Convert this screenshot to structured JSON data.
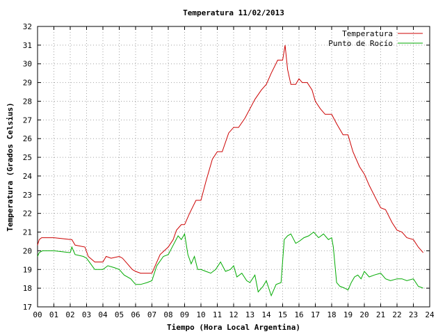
{
  "chart_data": {
    "type": "line",
    "title": "Temperatura 11/02/2013",
    "xlabel": "Tiempo (Hora Local Argentina)",
    "ylabel": "Temperatura (Grados Celsius)",
    "xlim": [
      0,
      24
    ],
    "ylim": [
      17,
      32
    ],
    "x_ticks": [
      "00",
      "01",
      "02",
      "03",
      "04",
      "05",
      "06",
      "07",
      "08",
      "09",
      "10",
      "11",
      "12",
      "13",
      "14",
      "15",
      "16",
      "17",
      "18",
      "19",
      "20",
      "21",
      "22",
      "23",
      "24"
    ],
    "y_ticks": [
      "17",
      "18",
      "19",
      "20",
      "21",
      "22",
      "23",
      "24",
      "25",
      "26",
      "27",
      "28",
      "29",
      "30",
      "31",
      "32"
    ],
    "grid": true,
    "legend_position": "top-right",
    "series": [
      {
        "name": "Temperatura",
        "color": "#cc0000",
        "x": [
          0.0,
          0.1,
          0.25,
          0.5,
          1.0,
          1.5,
          2.0,
          2.1,
          2.3,
          2.9,
          3.1,
          3.5,
          4.0,
          4.2,
          4.5,
          5.0,
          5.2,
          5.5,
          5.8,
          6.0,
          6.3,
          6.7,
          7.0,
          7.2,
          7.5,
          8.0,
          8.3,
          8.5,
          8.8,
          9.0,
          9.3,
          9.7,
          10.0,
          10.3,
          10.7,
          11.0,
          11.3,
          11.7,
          12.0,
          12.3,
          12.7,
          13.0,
          13.3,
          13.7,
          14.0,
          14.3,
          14.7,
          15.0,
          15.15,
          15.3,
          15.5,
          15.8,
          16.0,
          16.2,
          16.5,
          16.8,
          17.0,
          17.3,
          17.6,
          18.0,
          18.3,
          18.7,
          19.0,
          19.3,
          19.7,
          20.0,
          20.3,
          20.7,
          21.0,
          21.3,
          21.7,
          22.0,
          22.3,
          22.6,
          23.0,
          23.3,
          23.6
        ],
        "values": [
          20.3,
          20.6,
          20.7,
          20.7,
          20.7,
          20.65,
          20.6,
          20.6,
          20.3,
          20.2,
          19.7,
          19.4,
          19.4,
          19.7,
          19.6,
          19.7,
          19.6,
          19.3,
          19.0,
          18.9,
          18.8,
          18.8,
          18.8,
          19.2,
          19.8,
          20.2,
          20.6,
          21.1,
          21.4,
          21.4,
          22.0,
          22.7,
          22.7,
          23.7,
          24.9,
          25.3,
          25.3,
          26.3,
          26.6,
          26.6,
          27.1,
          27.6,
          28.1,
          28.6,
          28.9,
          29.5,
          30.2,
          30.2,
          31.0,
          29.7,
          28.9,
          28.9,
          29.2,
          29.0,
          29.0,
          28.6,
          28.0,
          27.6,
          27.3,
          27.3,
          26.8,
          26.2,
          26.2,
          25.3,
          24.5,
          24.1,
          23.5,
          22.8,
          22.3,
          22.2,
          21.5,
          21.1,
          21.0,
          20.7,
          20.6,
          20.2,
          19.9
        ]
      },
      {
        "name": "Punto de Rocío",
        "color": "#00aa00",
        "x": [
          0.0,
          0.1,
          0.3,
          0.7,
          1.0,
          1.5,
          2.0,
          2.1,
          2.3,
          2.8,
          3.0,
          3.5,
          4.0,
          4.3,
          4.7,
          5.0,
          5.3,
          5.7,
          6.0,
          6.3,
          6.7,
          7.0,
          7.3,
          7.7,
          8.0,
          8.3,
          8.6,
          8.8,
          9.0,
          9.2,
          9.4,
          9.6,
          9.8,
          10.0,
          10.3,
          10.6,
          10.9,
          11.2,
          11.5,
          11.8,
          12.0,
          12.2,
          12.5,
          12.8,
          13.0,
          13.3,
          13.5,
          13.8,
          14.0,
          14.3,
          14.6,
          14.9,
          15.1,
          15.3,
          15.5,
          15.8,
          16.0,
          16.3,
          16.6,
          16.9,
          17.2,
          17.5,
          17.8,
          18.0,
          18.1,
          18.3,
          18.5,
          18.8,
          19.0,
          19.2,
          19.4,
          19.6,
          19.8,
          20.0,
          20.3,
          20.6,
          21.0,
          21.3,
          21.6,
          22.0,
          22.3,
          22.6,
          23.0,
          23.3,
          23.6
        ],
        "values": [
          19.7,
          19.9,
          20.0,
          20.0,
          20.0,
          19.95,
          19.9,
          20.2,
          19.8,
          19.7,
          19.6,
          19.0,
          19.0,
          19.2,
          19.1,
          19.0,
          18.7,
          18.5,
          18.2,
          18.2,
          18.3,
          18.4,
          19.2,
          19.7,
          19.8,
          20.3,
          20.8,
          20.6,
          20.9,
          19.8,
          19.3,
          19.7,
          19.0,
          19.0,
          18.9,
          18.8,
          19.0,
          19.4,
          18.9,
          19.0,
          19.2,
          18.6,
          18.8,
          18.4,
          18.3,
          18.7,
          17.8,
          18.1,
          18.4,
          17.6,
          18.2,
          18.3,
          20.6,
          20.8,
          20.9,
          20.4,
          20.5,
          20.7,
          20.8,
          21.0,
          20.7,
          20.9,
          20.6,
          20.7,
          20.2,
          18.3,
          18.1,
          18.0,
          17.9,
          18.3,
          18.6,
          18.7,
          18.5,
          18.9,
          18.6,
          18.7,
          18.8,
          18.5,
          18.4,
          18.5,
          18.5,
          18.4,
          18.5,
          18.1,
          18.0
        ]
      }
    ]
  }
}
